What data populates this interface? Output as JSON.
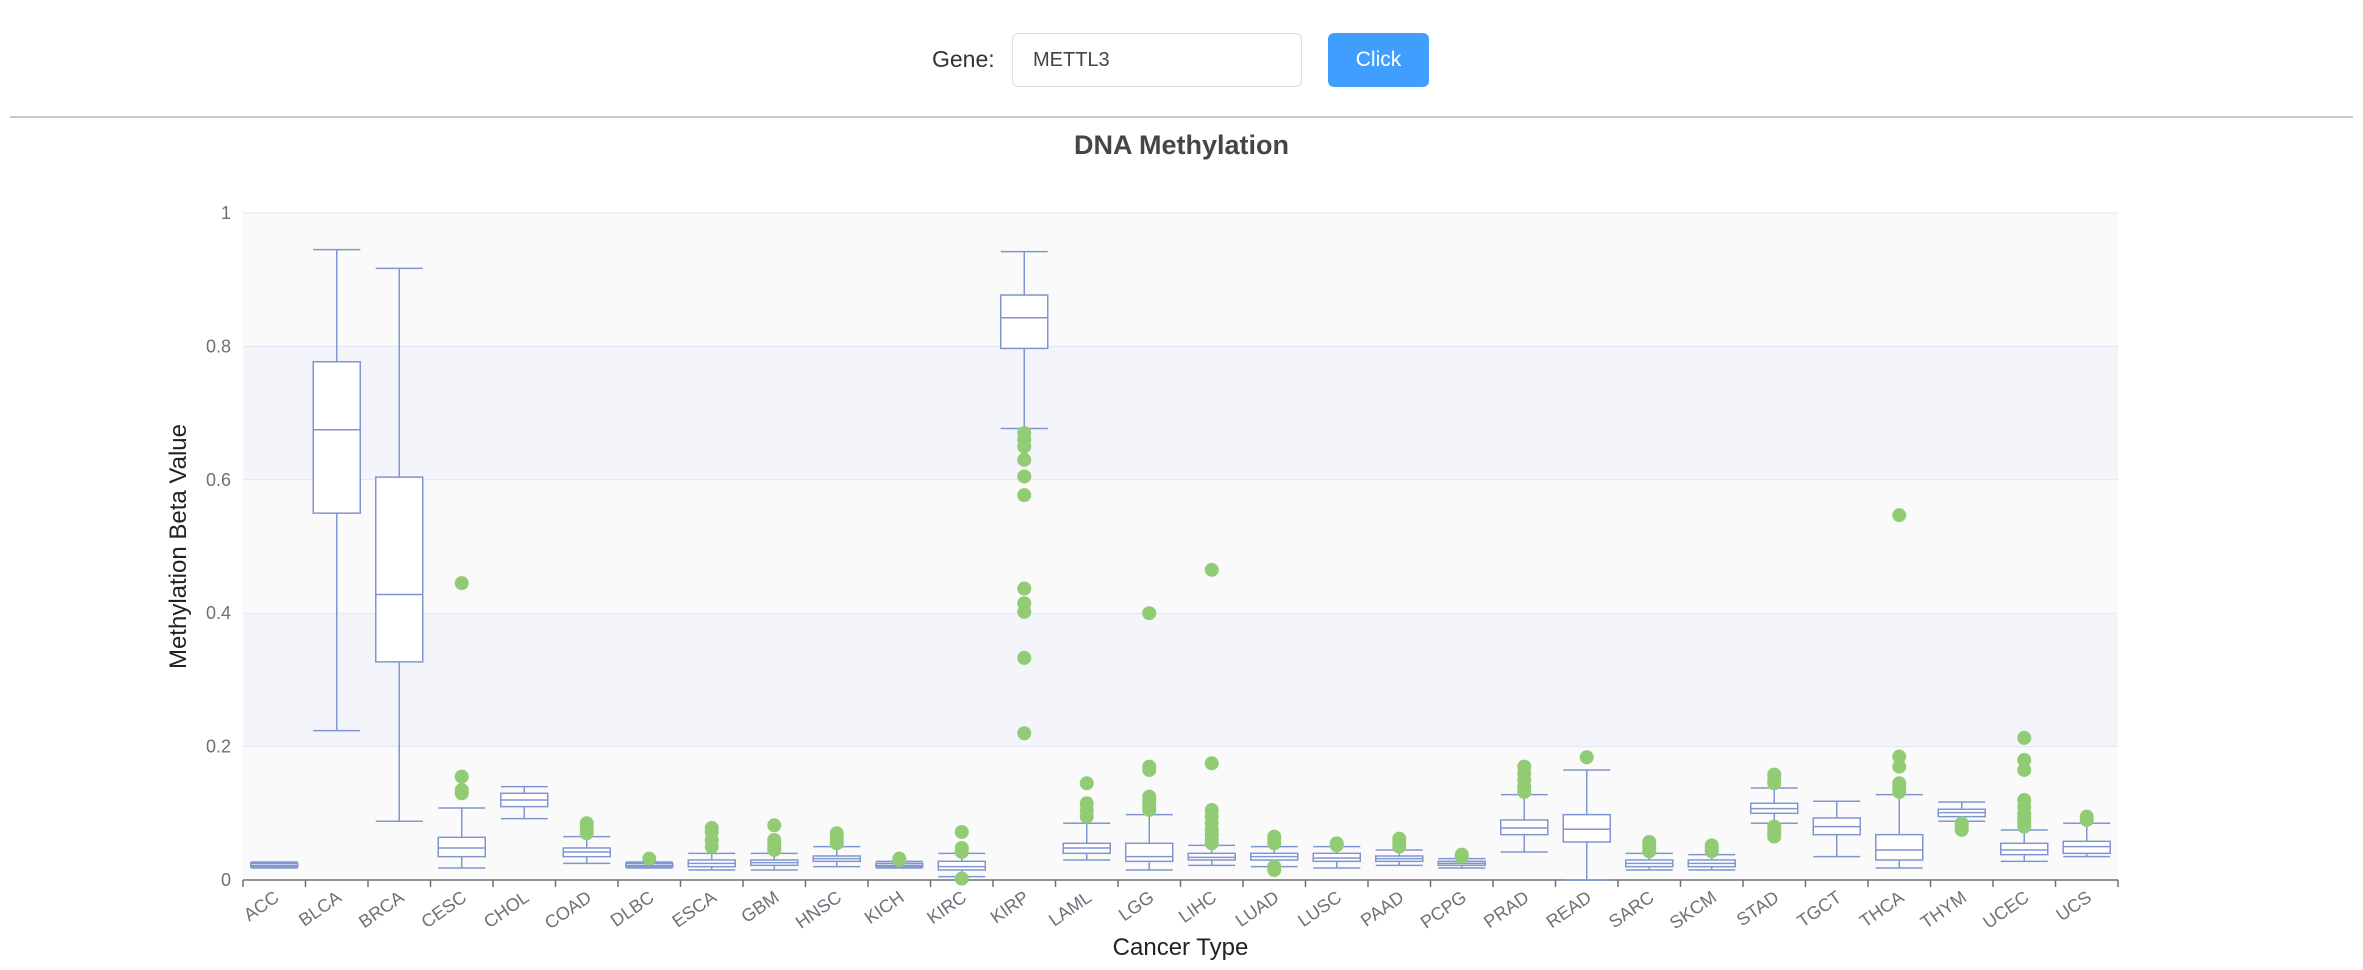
{
  "search": {
    "label": "Gene:",
    "value": "METTL3",
    "button_label": "Click"
  },
  "colors": {
    "box_stroke": "#8096d1",
    "outlier": "#91cc75",
    "button": "#409eff"
  },
  "chart_data": {
    "type": "boxplot",
    "title": "DNA Methylation",
    "xlabel": "Cancer Type",
    "ylabel": "Methylation Beta Value",
    "ylim": [
      0,
      1
    ],
    "yticks": [
      "0",
      "0.2",
      "0.4",
      "0.6",
      "0.8",
      "1"
    ],
    "grid": true,
    "categories": [
      "ACC",
      "BLCA",
      "BRCA",
      "CESC",
      "CHOL",
      "COAD",
      "DLBC",
      "ESCA",
      "GBM",
      "HNSC",
      "KICH",
      "KIRC",
      "KIRP",
      "LAML",
      "LGG",
      "LIHC",
      "LUAD",
      "LUSC",
      "PAAD",
      "PCPG",
      "PRAD",
      "READ",
      "SARC",
      "SKCM",
      "STAD",
      "TGCT",
      "THCA",
      "THYM",
      "UCEC",
      "UCS"
    ],
    "boxes": [
      {
        "min": 0.018,
        "q1": 0.02,
        "median": 0.022,
        "q3": 0.025,
        "max": 0.027,
        "outliers": []
      },
      {
        "min": 0.224,
        "q1": 0.55,
        "median": 0.675,
        "q3": 0.777,
        "max": 0.945,
        "outliers": []
      },
      {
        "min": 0.088,
        "q1": 0.327,
        "median": 0.428,
        "q3": 0.604,
        "max": 0.917,
        "outliers": []
      },
      {
        "min": 0.018,
        "q1": 0.035,
        "median": 0.048,
        "q3": 0.064,
        "max": 0.108,
        "outliers": [
          0.445,
          0.155,
          0.135,
          0.13
        ]
      },
      {
        "min": 0.092,
        "q1": 0.11,
        "median": 0.12,
        "q3": 0.13,
        "max": 0.14,
        "outliers": []
      },
      {
        "min": 0.025,
        "q1": 0.035,
        "median": 0.042,
        "q3": 0.048,
        "max": 0.065,
        "outliers": [
          0.085,
          0.08,
          0.075,
          0.07
        ]
      },
      {
        "min": 0.018,
        "q1": 0.02,
        "median": 0.022,
        "q3": 0.025,
        "max": 0.027,
        "outliers": [
          0.032
        ]
      },
      {
        "min": 0.015,
        "q1": 0.02,
        "median": 0.025,
        "q3": 0.03,
        "max": 0.04,
        "outliers": [
          0.078,
          0.072,
          0.06,
          0.05
        ]
      },
      {
        "min": 0.015,
        "q1": 0.022,
        "median": 0.026,
        "q3": 0.03,
        "max": 0.04,
        "outliers": [
          0.082,
          0.06,
          0.055,
          0.048,
          0.045
        ]
      },
      {
        "min": 0.02,
        "q1": 0.028,
        "median": 0.032,
        "q3": 0.036,
        "max": 0.05,
        "outliers": [
          0.07,
          0.065,
          0.06,
          0.055
        ]
      },
      {
        "min": 0.018,
        "q1": 0.02,
        "median": 0.022,
        "q3": 0.025,
        "max": 0.028,
        "outliers": [
          0.032,
          0.03
        ]
      },
      {
        "min": 0.005,
        "q1": 0.015,
        "median": 0.02,
        "q3": 0.028,
        "max": 0.04,
        "outliers": [
          0.072,
          0.048,
          0.042,
          0.002
        ]
      },
      {
        "min": 0.677,
        "q1": 0.797,
        "median": 0.843,
        "q3": 0.877,
        "max": 0.942,
        "outliers": [
          0.67,
          0.66,
          0.65,
          0.63,
          0.605,
          0.577,
          0.437,
          0.415,
          0.402,
          0.333,
          0.22
        ]
      },
      {
        "min": 0.03,
        "q1": 0.04,
        "median": 0.048,
        "q3": 0.055,
        "max": 0.085,
        "outliers": [
          0.145,
          0.115,
          0.105,
          0.095
        ]
      },
      {
        "min": 0.015,
        "q1": 0.028,
        "median": 0.035,
        "q3": 0.055,
        "max": 0.098,
        "outliers": [
          0.4,
          0.17,
          0.165,
          0.125,
          0.12,
          0.115,
          0.11,
          0.105
        ]
      },
      {
        "min": 0.022,
        "q1": 0.03,
        "median": 0.034,
        "q3": 0.04,
        "max": 0.052,
        "outliers": [
          0.465,
          0.175,
          0.105,
          0.095,
          0.085,
          0.075,
          0.068,
          0.06,
          0.055
        ]
      },
      {
        "min": 0.02,
        "q1": 0.03,
        "median": 0.035,
        "q3": 0.04,
        "max": 0.05,
        "outliers": [
          0.065,
          0.06,
          0.055,
          0.02,
          0.015
        ]
      },
      {
        "min": 0.018,
        "q1": 0.028,
        "median": 0.033,
        "q3": 0.04,
        "max": 0.05,
        "outliers": [
          0.055,
          0.052
        ]
      },
      {
        "min": 0.022,
        "q1": 0.028,
        "median": 0.032,
        "q3": 0.036,
        "max": 0.045,
        "outliers": [
          0.062,
          0.055,
          0.05
        ]
      },
      {
        "min": 0.018,
        "q1": 0.022,
        "median": 0.025,
        "q3": 0.028,
        "max": 0.032,
        "outliers": [
          0.038,
          0.035
        ]
      },
      {
        "min": 0.042,
        "q1": 0.068,
        "median": 0.078,
        "q3": 0.09,
        "max": 0.128,
        "outliers": [
          0.17,
          0.16,
          0.15,
          0.14,
          0.132
        ]
      },
      {
        "min": 0.0,
        "q1": 0.057,
        "median": 0.076,
        "q3": 0.098,
        "max": 0.165,
        "outliers": [
          0.184
        ]
      },
      {
        "min": 0.015,
        "q1": 0.02,
        "median": 0.025,
        "q3": 0.03,
        "max": 0.04,
        "outliers": [
          0.057,
          0.052,
          0.048,
          0.043
        ]
      },
      {
        "min": 0.015,
        "q1": 0.02,
        "median": 0.025,
        "q3": 0.03,
        "max": 0.038,
        "outliers": [
          0.052,
          0.048,
          0.043
        ]
      },
      {
        "min": 0.085,
        "q1": 0.1,
        "median": 0.107,
        "q3": 0.115,
        "max": 0.138,
        "outliers": [
          0.158,
          0.15,
          0.145,
          0.08,
          0.075,
          0.07,
          0.065
        ]
      },
      {
        "min": 0.035,
        "q1": 0.068,
        "median": 0.08,
        "q3": 0.093,
        "max": 0.118,
        "outliers": []
      },
      {
        "min": 0.018,
        "q1": 0.03,
        "median": 0.045,
        "q3": 0.068,
        "max": 0.128,
        "outliers": [
          0.547,
          0.185,
          0.17,
          0.145,
          0.14,
          0.132
        ]
      },
      {
        "min": 0.088,
        "q1": 0.095,
        "median": 0.101,
        "q3": 0.106,
        "max": 0.117,
        "outliers": [
          0.085,
          0.08,
          0.075
        ]
      },
      {
        "min": 0.028,
        "q1": 0.038,
        "median": 0.045,
        "q3": 0.055,
        "max": 0.075,
        "outliers": [
          0.213,
          0.18,
          0.165,
          0.12,
          0.11,
          0.1,
          0.095,
          0.09,
          0.085,
          0.08
        ]
      },
      {
        "min": 0.035,
        "q1": 0.04,
        "median": 0.05,
        "q3": 0.058,
        "max": 0.085,
        "outliers": [
          0.095,
          0.09
        ]
      }
    ]
  }
}
